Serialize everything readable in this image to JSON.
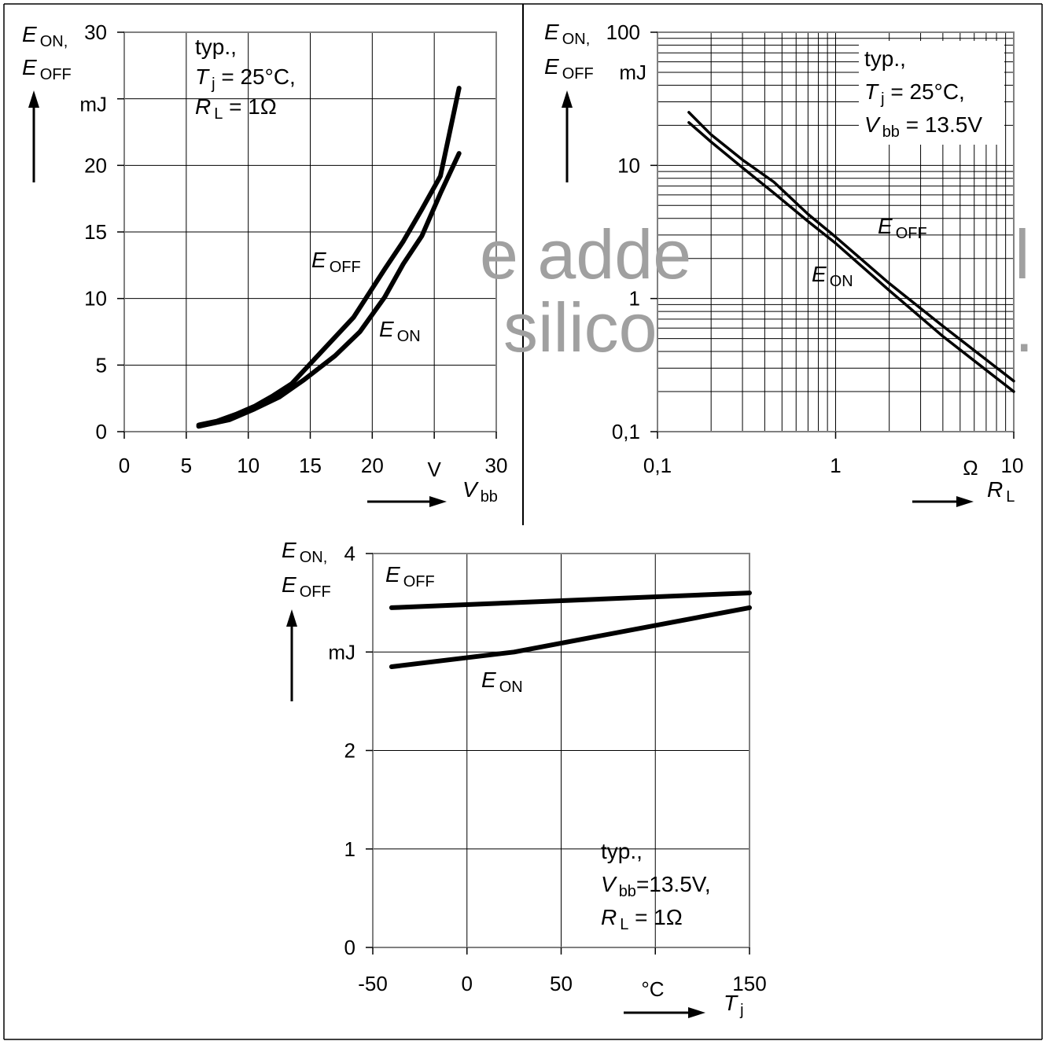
{
  "watermark": {
    "line1": "e adde",
    "line1_end": "l",
    "line2": "silico",
    "line2_end": "."
  },
  "chart_data": [
    {
      "type": "line",
      "scale": "linear",
      "grid": true,
      "x": {
        "min": 0,
        "max": 30,
        "ticks": [
          "0",
          "5",
          "10",
          "15",
          "20",
          "30"
        ],
        "unit": "V",
        "symbol": "V",
        "subscript": "bb"
      },
      "y": {
        "min": 0,
        "max": 30,
        "ticks": [
          "0",
          "5",
          "10",
          "15",
          "20",
          "30"
        ],
        "unit": "mJ"
      },
      "ylabel": {
        "line1_symbol": "E",
        "line1_sub": "ON,",
        "line2_symbol": "E",
        "line2_sub": "OFF"
      },
      "annotation": [
        {
          "text": "typ.,"
        },
        {
          "symbol": "T",
          "sub": "j",
          "value": " = 25°C,"
        },
        {
          "symbol": "R",
          "sub": "L",
          "value": " = 1Ω"
        }
      ],
      "series": [
        {
          "name": "OFF",
          "symbol": "E",
          "x": [
            6,
            7.5,
            9,
            10.5,
            12,
            13.5,
            16,
            18.5,
            21,
            22.5,
            24,
            25.5,
            27
          ],
          "y": [
            0.5,
            0.8,
            1.3,
            1.9,
            2.7,
            3.6,
            6.1,
            8.6,
            12.2,
            14.3,
            16.7,
            19.2,
            25.8
          ]
        },
        {
          "name": "ON",
          "symbol": "E",
          "x": [
            6,
            8.5,
            10.5,
            12.5,
            14.5,
            17,
            19,
            21,
            22.5,
            24,
            25.5,
            27
          ],
          "y": [
            0.4,
            0.9,
            1.7,
            2.6,
            3.9,
            5.7,
            7.5,
            10.1,
            12.6,
            14.7,
            17.9,
            20.9
          ]
        }
      ]
    },
    {
      "type": "line",
      "scale": "log-log",
      "grid": true,
      "x": {
        "min": 0.1,
        "max": 10,
        "ticks": [
          "0,1",
          "1",
          "10"
        ],
        "unit": "Ω",
        "symbol": "R",
        "subscript": "L"
      },
      "y": {
        "min": 0.1,
        "max": 100,
        "ticks": [
          "0,1",
          "1",
          "10",
          "100"
        ],
        "unit": "mJ"
      },
      "ylabel": {
        "line1_symbol": "E",
        "line1_sub": "ON,",
        "line2_symbol": "E",
        "line2_sub": "OFF"
      },
      "annotation": [
        {
          "text": "typ.,"
        },
        {
          "symbol": "T",
          "sub": "j",
          "value": " = 25°C,"
        },
        {
          "symbol": "V",
          "sub": "bb",
          "value": " = 13.5V"
        }
      ],
      "series": [
        {
          "name": "OFF",
          "symbol": "E",
          "x": [
            0.15,
            0.2,
            0.3,
            0.45,
            0.7,
            1,
            2,
            4,
            10
          ],
          "y": [
            25,
            17,
            11,
            7.5,
            4.3,
            2.9,
            1.3,
            0.62,
            0.24
          ]
        },
        {
          "name": "ON",
          "symbol": "E",
          "x": [
            0.15,
            0.2,
            0.3,
            0.45,
            0.7,
            1,
            2,
            4,
            10
          ],
          "y": [
            21,
            15,
            9.6,
            6.2,
            3.8,
            2.6,
            1.15,
            0.52,
            0.2
          ]
        }
      ]
    },
    {
      "type": "line",
      "scale": "linear",
      "grid": true,
      "x": {
        "min": -50,
        "max": 150,
        "ticks": [
          "-50",
          "0",
          "50",
          "150"
        ],
        "unit": "°C",
        "symbol": "T",
        "subscript": "j"
      },
      "y": {
        "min": 0,
        "max": 4,
        "ticks": [
          "0",
          "1",
          "2",
          "4"
        ],
        "unit": "mJ"
      },
      "ylabel": {
        "line1_symbol": "E",
        "line1_sub": "ON,",
        "line2_symbol": "E",
        "line2_sub": "OFF"
      },
      "annotation": [
        {
          "text": "typ.,"
        },
        {
          "symbol": "V",
          "sub": "bb",
          "value": "=13.5V,"
        },
        {
          "symbol": "R",
          "sub": "L",
          "value": " = 1Ω"
        }
      ],
      "series": [
        {
          "name": "OFF",
          "symbol": "E",
          "x": [
            -40,
            150
          ],
          "y": [
            3.45,
            3.6
          ]
        },
        {
          "name": "ON",
          "symbol": "E",
          "x": [
            -40,
            25,
            150
          ],
          "y": [
            2.85,
            3.0,
            3.45
          ]
        }
      ]
    }
  ]
}
